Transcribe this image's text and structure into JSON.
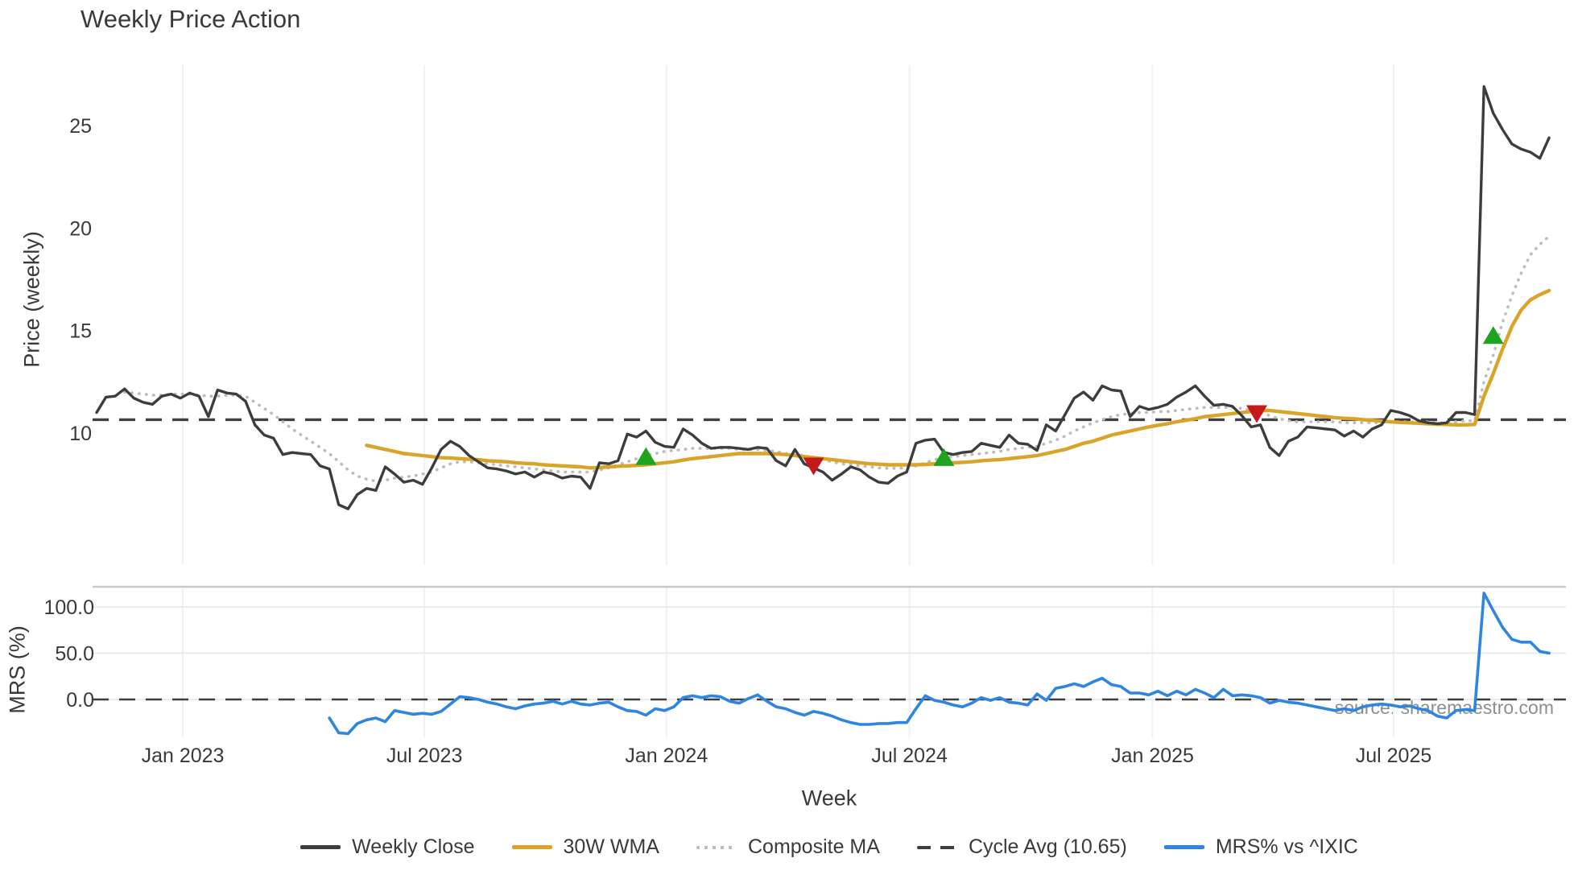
{
  "title": "Weekly Price Action",
  "source": "source: sharemaestro.com",
  "colors": {
    "weekly_close": "#3d3d3d",
    "wma30": "#d9a427",
    "composite_ma": "#bdbdbd",
    "cycle_avg": "#3f3f3f",
    "mrs": "#2e86e0",
    "buy_marker": "#1ea31e",
    "sell_marker": "#c51a1a",
    "grid_vertical": "#eff1f7",
    "grid_horizontal": "#eaebf2",
    "panel_spine": "#c9c9cf",
    "tick_text": "#3a3a3a"
  },
  "legend": {
    "items": [
      {
        "label": "Weekly Close",
        "color": "#3d3d3d",
        "style": "solid"
      },
      {
        "label": "30W WMA",
        "color": "#d9a427",
        "style": "solid"
      },
      {
        "label": "Composite MA",
        "color": "#bdbdbd",
        "style": "dotted"
      },
      {
        "label": "Cycle Avg (10.65)",
        "color": "#3f3f3f",
        "style": "dashed"
      },
      {
        "label": "MRS% vs ^IXIC",
        "color": "#2e86e0",
        "style": "solid"
      }
    ]
  },
  "chart_data": {
    "type": "line",
    "x_axis": {
      "label": "Week",
      "ticks": [
        {
          "label": "Jan 2023",
          "week": 9.25
        },
        {
          "label": "Jul 2023",
          "week": 35.2
        },
        {
          "label": "Jan 2024",
          "week": 61.2
        },
        {
          "label": "Jul 2024",
          "week": 87.3
        },
        {
          "label": "Jan 2025",
          "week": 113.4
        },
        {
          "label": "Jul 2025",
          "week": 139.3
        }
      ]
    },
    "panels": [
      {
        "name": "price",
        "ylabel": "Price (weekly)",
        "ylim": [
          5.1,
          27.9
        ],
        "yticks": [
          {
            "label": "25",
            "value": 25
          },
          {
            "label": "20",
            "value": 20
          },
          {
            "label": "15",
            "value": 15
          },
          {
            "label": "10",
            "value": 10
          }
        ]
      },
      {
        "name": "mrs",
        "ylabel": "MRS (%)",
        "ylim": [
          -42,
          122
        ],
        "yticks": [
          {
            "label": "100.0",
            "value": 100
          },
          {
            "label": "50.0",
            "value": 50
          },
          {
            "label": "0.0",
            "value": 0
          }
        ]
      }
    ],
    "series": {
      "cycle_avg_value": 10.65,
      "weekly_close": {
        "start_week": 0,
        "values": [
          11.0,
          11.75,
          11.8,
          12.15,
          11.7,
          11.5,
          11.4,
          11.8,
          11.9,
          11.7,
          11.95,
          11.8,
          10.8,
          12.1,
          11.95,
          11.9,
          11.55,
          10.4,
          9.9,
          9.75,
          8.95,
          9.05,
          9.0,
          8.95,
          8.4,
          8.25,
          6.5,
          6.3,
          7.0,
          7.3,
          7.2,
          8.35,
          8.0,
          7.6,
          7.7,
          7.5,
          8.3,
          9.2,
          9.6,
          9.35,
          8.9,
          8.6,
          8.3,
          8.25,
          8.15,
          8.0,
          8.1,
          7.85,
          8.1,
          8.0,
          7.8,
          7.9,
          7.85,
          7.3,
          8.55,
          8.5,
          8.65,
          9.95,
          9.8,
          10.1,
          9.55,
          9.35,
          9.3,
          10.2,
          9.9,
          9.5,
          9.25,
          9.3,
          9.3,
          9.25,
          9.2,
          9.3,
          9.25,
          8.65,
          8.4,
          9.2,
          8.5,
          8.3,
          8.1,
          7.7,
          8.0,
          8.35,
          8.2,
          7.85,
          7.6,
          7.55,
          7.9,
          8.1,
          9.5,
          9.65,
          9.7,
          9.05,
          8.95,
          9.05,
          9.1,
          9.5,
          9.4,
          9.3,
          9.9,
          9.5,
          9.45,
          9.15,
          10.4,
          10.1,
          10.9,
          11.7,
          12.0,
          11.6,
          12.3,
          12.1,
          12.05,
          10.8,
          11.3,
          11.15,
          11.25,
          11.4,
          11.75,
          12.0,
          12.3,
          11.8,
          11.35,
          11.4,
          11.3,
          10.85,
          10.3,
          10.4,
          9.3,
          8.9,
          9.6,
          9.8,
          10.3,
          10.25,
          10.2,
          10.15,
          9.85,
          10.1,
          9.8,
          10.2,
          10.4,
          11.1,
          11.0,
          10.85,
          10.6,
          10.5,
          10.45,
          10.5,
          11.0,
          11.0,
          10.9,
          26.9,
          25.6,
          24.8,
          24.1,
          23.85,
          23.7,
          23.4,
          24.4
        ]
      },
      "wma30": {
        "start_week": 29,
        "values": [
          9.4,
          9.3,
          9.2,
          9.1,
          9.0,
          8.95,
          8.9,
          8.85,
          8.8,
          8.78,
          8.75,
          8.72,
          8.7,
          8.65,
          8.62,
          8.6,
          8.55,
          8.52,
          8.5,
          8.45,
          8.42,
          8.4,
          8.37,
          8.35,
          8.3,
          8.32,
          8.35,
          8.38,
          8.4,
          8.42,
          8.45,
          8.5,
          8.55,
          8.6,
          8.68,
          8.75,
          8.8,
          8.85,
          8.9,
          8.95,
          9.0,
          9.0,
          9.0,
          9.0,
          8.98,
          8.95,
          8.9,
          8.85,
          8.8,
          8.75,
          8.7,
          8.65,
          8.6,
          8.55,
          8.5,
          8.48,
          8.45,
          8.45,
          8.45,
          8.45,
          8.47,
          8.5,
          8.52,
          8.55,
          8.57,
          8.6,
          8.65,
          8.68,
          8.7,
          8.75,
          8.8,
          8.85,
          8.9,
          9.0,
          9.1,
          9.2,
          9.35,
          9.5,
          9.6,
          9.75,
          9.9,
          10.0,
          10.1,
          10.2,
          10.3,
          10.38,
          10.45,
          10.55,
          10.62,
          10.7,
          10.8,
          10.85,
          10.9,
          10.95,
          11.0,
          11.05,
          11.1,
          11.1,
          11.05,
          11.0,
          10.95,
          10.9,
          10.85,
          10.8,
          10.75,
          10.72,
          10.7,
          10.65,
          10.62,
          10.58,
          10.55,
          10.52,
          10.5,
          10.48,
          10.45,
          10.43,
          10.42,
          10.4,
          10.4,
          10.42,
          11.8,
          12.9,
          14.1,
          15.2,
          16.0,
          16.5,
          16.75,
          16.95
        ]
      },
      "composite_ma": {
        "start_week": 3,
        "values": [
          12.0,
          11.95,
          11.9,
          11.85,
          11.85,
          11.9,
          11.9,
          11.9,
          11.85,
          11.8,
          11.8,
          11.85,
          11.85,
          11.8,
          11.5,
          11.2,
          10.9,
          10.55,
          10.2,
          9.9,
          9.6,
          9.3,
          9.0,
          8.6,
          8.2,
          7.9,
          7.75,
          7.65,
          7.7,
          7.8,
          7.85,
          7.9,
          8.0,
          8.1,
          8.3,
          8.5,
          8.6,
          8.6,
          8.55,
          8.5,
          8.45,
          8.4,
          8.35,
          8.3,
          8.25,
          8.2,
          8.15,
          8.1,
          8.1,
          8.1,
          8.1,
          8.2,
          8.3,
          8.45,
          8.6,
          8.75,
          8.9,
          9.0,
          9.1,
          9.15,
          9.2,
          9.25,
          9.25,
          9.25,
          9.25,
          9.25,
          9.2,
          9.2,
          9.2,
          9.15,
          9.1,
          9.0,
          8.95,
          8.9,
          8.8,
          8.7,
          8.6,
          8.5,
          8.45,
          8.4,
          8.35,
          8.3,
          8.28,
          8.28,
          8.3,
          8.4,
          8.55,
          8.7,
          8.8,
          8.85,
          8.9,
          8.95,
          9.0,
          9.05,
          9.1,
          9.2,
          9.25,
          9.3,
          9.35,
          9.5,
          9.65,
          9.85,
          10.1,
          10.3,
          10.5,
          10.65,
          10.8,
          10.9,
          10.95,
          11.0,
          11.0,
          11.05,
          11.05,
          11.1,
          11.15,
          11.2,
          11.25,
          11.25,
          11.25,
          11.25,
          11.2,
          11.1,
          11.0,
          10.85,
          10.7,
          10.6,
          10.55,
          10.55,
          10.55,
          10.55,
          10.55,
          10.5,
          10.5,
          10.5,
          10.5,
          10.5,
          10.55,
          10.55,
          10.55,
          10.55,
          10.55,
          10.5,
          10.5,
          10.55,
          10.6,
          10.6,
          12.5,
          13.8,
          15.4,
          16.7,
          17.8,
          18.7,
          19.2,
          19.6
        ]
      },
      "mrs_pct": {
        "start_week": 25,
        "values": [
          -20,
          -36,
          -37,
          -26,
          -22,
          -20,
          -24,
          -12,
          -14,
          -16,
          -15,
          -16,
          -13,
          -5,
          3,
          2,
          0,
          -3,
          -5,
          -8,
          -10,
          -7,
          -5,
          -4,
          -2,
          -5,
          -2,
          -5,
          -6,
          -4,
          -3,
          -8,
          -12,
          -13,
          -17,
          -10,
          -12,
          -8,
          2,
          4,
          2,
          4,
          3,
          -2,
          -4,
          1,
          5,
          -2,
          -8,
          -10,
          -14,
          -17,
          -13,
          -15,
          -18,
          -22,
          -25,
          -27,
          -27,
          -26,
          -26,
          -25,
          -25,
          -10,
          4,
          -1,
          -3,
          -6,
          -8,
          -4,
          2,
          -1,
          2,
          -3,
          -4,
          -6,
          6,
          -1,
          12,
          14,
          17,
          14,
          19,
          23,
          16,
          14,
          7,
          7,
          5,
          9,
          4,
          9,
          5,
          11,
          7,
          2,
          11,
          4,
          5,
          4,
          2,
          -4,
          -1,
          -3,
          -4,
          -6,
          -8,
          -10,
          -12,
          -10,
          -12,
          -8,
          -6,
          -5,
          -6,
          -8,
          -7,
          -10,
          -12,
          -18,
          -20,
          -12,
          -11,
          -12,
          115,
          96,
          78,
          65,
          62,
          62,
          52,
          50
        ]
      },
      "buy_markers": [
        {
          "week": 59,
          "price": 8.8
        },
        {
          "week": 91,
          "price": 8.75
        },
        {
          "week": 150,
          "price": 14.7
        }
      ],
      "sell_markers": [
        {
          "week": 77,
          "price": 8.45
        },
        {
          "week": 124.6,
          "price": 11.0
        }
      ]
    }
  }
}
